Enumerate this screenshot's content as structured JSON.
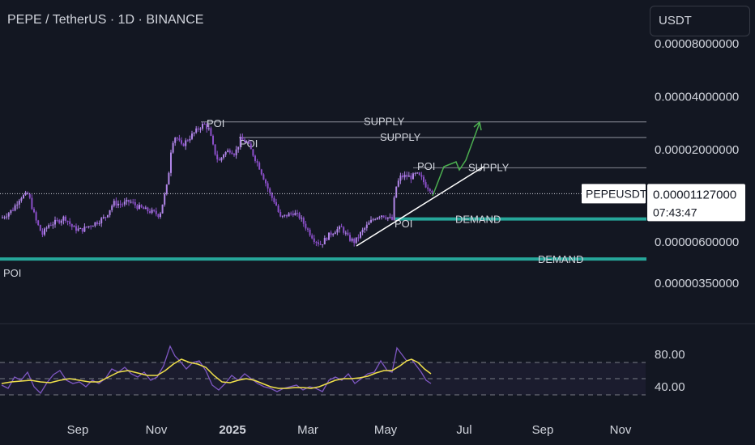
{
  "header": {
    "title": "PEPE / TetherUS · 1D · BINANCE",
    "currency": "USDT"
  },
  "colors": {
    "background": "#131722",
    "candle": "#9a5fd1",
    "rsi_line": "#7e57c2",
    "rsi_ma": "#f0e04a",
    "demand": "#26a69a",
    "supply_line": "#787b86",
    "arrow": "#4caf50",
    "trendline": "#ffffff"
  },
  "chart_data": [
    {
      "type": "candlestick",
      "y_axis": {
        "scale": "log",
        "tick_labels": [
          "0.00008000000",
          "0.00004000000",
          "0.00002000000",
          "0.00000600000",
          "0.00000350000"
        ]
      },
      "x_axis": {
        "tick_labels": [
          "Sep",
          "Nov",
          "2025",
          "Mar",
          "May",
          "Jul",
          "Sep",
          "Nov"
        ]
      },
      "last_price": {
        "symbol": "PEPEUSDT",
        "value": "0.00001127000",
        "countdown": "07:43:47"
      },
      "series_path": [
        [
          2,
          8.2e-06
        ],
        [
          8,
          8.6e-06
        ],
        [
          16,
          9.2e-06
        ],
        [
          25,
          1.08e-05
        ],
        [
          35,
          1.12e-05
        ],
        [
          44,
          8e-06
        ],
        [
          52,
          6.6e-06
        ],
        [
          60,
          7.5e-06
        ],
        [
          70,
          7.8e-06
        ],
        [
          80,
          8.3e-06
        ],
        [
          90,
          7.2e-06
        ],
        [
          100,
          7e-06
        ],
        [
          110,
          7.4e-06
        ],
        [
          120,
          7.8e-06
        ],
        [
          130,
          8.3e-06
        ],
        [
          140,
          1e-05
        ],
        [
          150,
          9.8e-06
        ],
        [
          160,
          1.02e-05
        ],
        [
          170,
          9.5e-06
        ],
        [
          180,
          9.1e-06
        ],
        [
          190,
          8.8e-06
        ],
        [
          197,
          8.5e-06
        ],
        [
          202,
          1.05e-05
        ],
        [
          207,
          1.3e-05
        ],
        [
          212,
          2.2e-05
        ],
        [
          217,
          2.4e-05
        ],
        [
          224,
          2.1e-05
        ],
        [
          232,
          2.3e-05
        ],
        [
          240,
          2.5e-05
        ],
        [
          247,
          2.7e-05
        ],
        [
          252,
          2.8e-05
        ],
        [
          258,
          2.6e-05
        ],
        [
          264,
          2e-05
        ],
        [
          270,
          1.7e-05
        ],
        [
          276,
          1.9e-05
        ],
        [
          284,
          2e-05
        ],
        [
          290,
          1.9e-05
        ],
        [
          297,
          2.3e-05
        ],
        [
          305,
          2.2e-05
        ],
        [
          312,
          1.9e-05
        ],
        [
          320,
          1.6e-05
        ],
        [
          328,
          1.3e-05
        ],
        [
          334,
          1.1e-05
        ],
        [
          340,
          1e-05
        ],
        [
          346,
          8.2e-06
        ],
        [
          354,
          8.5e-06
        ],
        [
          362,
          8.8e-06
        ],
        [
          370,
          8.3e-06
        ],
        [
          380,
          7e-06
        ],
        [
          388,
          6.2e-06
        ],
        [
          396,
          5.8e-06
        ],
        [
          405,
          6.5e-06
        ],
        [
          414,
          7e-06
        ],
        [
          422,
          7.2e-06
        ],
        [
          430,
          6.3e-06
        ],
        [
          438,
          6e-06
        ],
        [
          446,
          6.8e-06
        ],
        [
          454,
          7.5e-06
        ],
        [
          462,
          8.2e-06
        ],
        [
          470,
          8.6e-06
        ],
        [
          478,
          8.3e-06
        ],
        [
          484,
          8e-06
        ],
        [
          488,
          1.2e-05
        ],
        [
          494,
          1.4e-05
        ],
        [
          500,
          1.42e-05
        ],
        [
          508,
          1.4e-05
        ],
        [
          514,
          1.46e-05
        ],
        [
          520,
          1.38e-05
        ],
        [
          526,
          1.25e-05
        ],
        [
          532,
          1.2e-05
        ],
        [
          536,
          1.127e-05
        ]
      ],
      "annotations": [
        {
          "type": "hline",
          "label": "SUPPLY",
          "value": 2.88e-05,
          "x_start": 248
        },
        {
          "type": "hline",
          "label": "SUPPLY",
          "value": 2.35e-05,
          "x_start": 295
        },
        {
          "type": "hline",
          "label": "SUPPLY",
          "value": 1.58e-05,
          "x_start": 510
        },
        {
          "type": "hline",
          "label": "DEMAND",
          "value": 8.1e-06,
          "x_start": 488
        },
        {
          "type": "hline",
          "label": "DEMAND",
          "value": 4.8e-06,
          "x_start": 0
        },
        {
          "type": "text",
          "label": "POI",
          "ref": "supply1"
        },
        {
          "type": "text",
          "label": "POI",
          "ref": "supply2"
        },
        {
          "type": "text",
          "label": "POI",
          "ref": "supply3"
        },
        {
          "type": "text",
          "label": "POI",
          "ref": "demand1"
        },
        {
          "type": "text",
          "label": "POI",
          "ref": "demand2"
        }
      ]
    },
    {
      "type": "line",
      "name": "RSI",
      "y_axis": {
        "tick_labels": [
          "80.00",
          "40.00"
        ],
        "upper_band": 70,
        "lower_band": 30,
        "mid": 50
      },
      "rsi": [
        [
          2,
          42
        ],
        [
          10,
          38
        ],
        [
          18,
          52
        ],
        [
          26,
          48
        ],
        [
          34,
          58
        ],
        [
          42,
          40
        ],
        [
          50,
          32
        ],
        [
          58,
          45
        ],
        [
          66,
          55
        ],
        [
          74,
          60
        ],
        [
          82,
          48
        ],
        [
          90,
          44
        ],
        [
          98,
          46
        ],
        [
          106,
          40
        ],
        [
          114,
          48
        ],
        [
          122,
          44
        ],
        [
          130,
          50
        ],
        [
          138,
          62
        ],
        [
          146,
          58
        ],
        [
          154,
          64
        ],
        [
          162,
          56
        ],
        [
          170,
          52
        ],
        [
          178,
          58
        ],
        [
          186,
          48
        ],
        [
          194,
          52
        ],
        [
          202,
          66
        ],
        [
          210,
          90
        ],
        [
          216,
          78
        ],
        [
          222,
          72
        ],
        [
          230,
          62
        ],
        [
          238,
          70
        ],
        [
          246,
          72
        ],
        [
          254,
          60
        ],
        [
          262,
          42
        ],
        [
          270,
          36
        ],
        [
          278,
          44
        ],
        [
          286,
          54
        ],
        [
          294,
          48
        ],
        [
          302,
          56
        ],
        [
          310,
          50
        ],
        [
          318,
          44
        ],
        [
          326,
          40
        ],
        [
          334,
          38
        ],
        [
          342,
          34
        ],
        [
          350,
          38
        ],
        [
          358,
          40
        ],
        [
          366,
          42
        ],
        [
          374,
          36
        ],
        [
          382,
          40
        ],
        [
          390,
          38
        ],
        [
          398,
          34
        ],
        [
          406,
          48
        ],
        [
          414,
          52
        ],
        [
          422,
          48
        ],
        [
          430,
          56
        ],
        [
          438,
          44
        ],
        [
          446,
          50
        ],
        [
          454,
          56
        ],
        [
          462,
          58
        ],
        [
          470,
          72
        ],
        [
          478,
          60
        ],
        [
          484,
          58
        ],
        [
          490,
          88
        ],
        [
          496,
          80
        ],
        [
          502,
          72
        ],
        [
          508,
          74
        ],
        [
          514,
          66
        ],
        [
          520,
          58
        ],
        [
          526,
          48
        ],
        [
          532,
          44
        ]
      ],
      "rsi_ma": [
        [
          2,
          44
        ],
        [
          14,
          46
        ],
        [
          26,
          47
        ],
        [
          38,
          48
        ],
        [
          50,
          46
        ],
        [
          62,
          45
        ],
        [
          74,
          48
        ],
        [
          86,
          50
        ],
        [
          98,
          48
        ],
        [
          110,
          46
        ],
        [
          122,
          46
        ],
        [
          134,
          52
        ],
        [
          146,
          58
        ],
        [
          158,
          60
        ],
        [
          170,
          57
        ],
        [
          182,
          54
        ],
        [
          194,
          54
        ],
        [
          204,
          60
        ],
        [
          214,
          68
        ],
        [
          224,
          74
        ],
        [
          234,
          70
        ],
        [
          244,
          68
        ],
        [
          254,
          64
        ],
        [
          264,
          54
        ],
        [
          274,
          46
        ],
        [
          284,
          45
        ],
        [
          294,
          48
        ],
        [
          304,
          50
        ],
        [
          314,
          48
        ],
        [
          324,
          44
        ],
        [
          334,
          40
        ],
        [
          344,
          38
        ],
        [
          354,
          38
        ],
        [
          364,
          39
        ],
        [
          374,
          39
        ],
        [
          384,
          38
        ],
        [
          394,
          40
        ],
        [
          404,
          44
        ],
        [
          414,
          48
        ],
        [
          424,
          50
        ],
        [
          434,
          50
        ],
        [
          444,
          51
        ],
        [
          454,
          53
        ],
        [
          464,
          57
        ],
        [
          474,
          60
        ],
        [
          484,
          60
        ],
        [
          494,
          66
        ],
        [
          502,
          72
        ],
        [
          508,
          74
        ],
        [
          516,
          70
        ],
        [
          524,
          62
        ],
        [
          532,
          56
        ]
      ]
    }
  ]
}
